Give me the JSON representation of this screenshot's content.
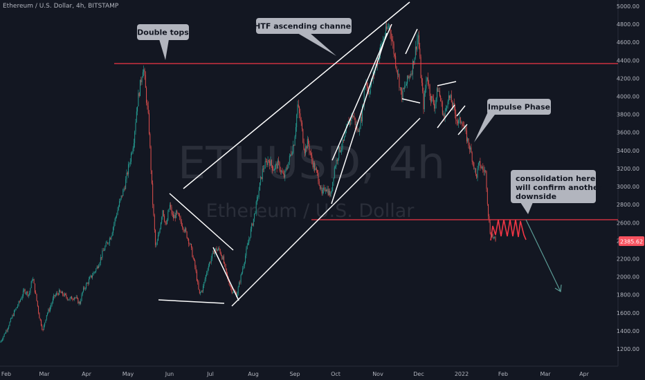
{
  "header": {
    "symbol_title": "Ethereum / U.S. Dollar, 4h, BITSTAMP"
  },
  "watermark": {
    "ticker": "ETHUSD, 4h",
    "name": "Ethereum / U.S. Dollar"
  },
  "colors": {
    "background": "#131722",
    "bull": "#26a69a",
    "bear": "#ef5350",
    "level_line": "#f23645",
    "drawing": "#ffffff",
    "annotation_bg": "#b2b5be",
    "forecast_arrow": "#5b9c96",
    "price_tag": "#f7525f"
  },
  "chart_data": {
    "type": "candlestick",
    "symbol": "ETHUSD",
    "timeframe": "4h",
    "exchange": "BITSTAMP",
    "x_labels": [
      "Feb",
      "Mar",
      "Apr",
      "May",
      "Jun",
      "Jul",
      "Aug",
      "Sep",
      "Oct",
      "Nov",
      "Dec",
      "2022",
      "Feb",
      "Mar",
      "Apr"
    ],
    "y_ticks": [
      1200,
      1400,
      1600,
      1800,
      2000,
      2200,
      2400,
      2600,
      2800,
      3000,
      3200,
      3400,
      3600,
      3800,
      4000,
      4200,
      4400,
      4600,
      4800,
      5000
    ],
    "ylim": [
      1120,
      5060
    ],
    "last_price": "2385.62",
    "price_path": [
      [
        0,
        1270
      ],
      [
        10,
        1420
      ],
      [
        20,
        1600
      ],
      [
        28,
        1720
      ],
      [
        35,
        1850
      ],
      [
        42,
        1800
      ],
      [
        47,
        2000
      ],
      [
        52,
        1780
      ],
      [
        57,
        1550
      ],
      [
        62,
        1400
      ],
      [
        67,
        1580
      ],
      [
        72,
        1650
      ],
      [
        78,
        1780
      ],
      [
        85,
        1830
      ],
      [
        92,
        1800
      ],
      [
        100,
        1750
      ],
      [
        108,
        1780
      ],
      [
        115,
        1700
      ],
      [
        120,
        1850
      ],
      [
        130,
        1980
      ],
      [
        140,
        2100
      ],
      [
        150,
        2300
      ],
      [
        160,
        2450
      ],
      [
        165,
        2600
      ],
      [
        172,
        2800
      ],
      [
        180,
        3000
      ],
      [
        188,
        3300
      ],
      [
        193,
        3500
      ],
      [
        198,
        3900
      ],
      [
        203,
        4150
      ],
      [
        207,
        4350
      ],
      [
        210,
        4100
      ],
      [
        215,
        3700
      ],
      [
        220,
        2900
      ],
      [
        225,
        2300
      ],
      [
        230,
        2500
      ],
      [
        235,
        2750
      ],
      [
        240,
        2550
      ],
      [
        245,
        2800
      ],
      [
        250,
        2650
      ],
      [
        255,
        2700
      ],
      [
        262,
        2600
      ],
      [
        268,
        2500
      ],
      [
        275,
        2350
      ],
      [
        282,
        2100
      ],
      [
        288,
        1800
      ],
      [
        293,
        1870
      ],
      [
        300,
        2100
      ],
      [
        305,
        2200
      ],
      [
        310,
        2300
      ],
      [
        317,
        2300
      ],
      [
        322,
        2200
      ],
      [
        328,
        2000
      ],
      [
        335,
        1850
      ],
      [
        342,
        1800
      ],
      [
        348,
        2000
      ],
      [
        355,
        2250
      ],
      [
        362,
        2500
      ],
      [
        368,
        2700
      ],
      [
        375,
        3000
      ],
      [
        380,
        3200
      ],
      [
        388,
        3300
      ],
      [
        395,
        3200
      ],
      [
        402,
        3250
      ],
      [
        410,
        3100
      ],
      [
        418,
        3300
      ],
      [
        425,
        3500
      ],
      [
        430,
        3900
      ],
      [
        435,
        3700
      ],
      [
        440,
        3400
      ],
      [
        445,
        3500
      ],
      [
        450,
        3300
      ],
      [
        455,
        3200
      ],
      [
        460,
        3100
      ],
      [
        465,
        2900
      ],
      [
        470,
        3000
      ],
      [
        478,
        2900
      ],
      [
        483,
        3200
      ],
      [
        490,
        3400
      ],
      [
        497,
        3500
      ],
      [
        503,
        3700
      ],
      [
        510,
        3800
      ],
      [
        517,
        3600
      ],
      [
        523,
        3800
      ],
      [
        528,
        4200
      ],
      [
        533,
        4050
      ],
      [
        538,
        4200
      ],
      [
        545,
        4400
      ],
      [
        552,
        4600
      ],
      [
        557,
        4700
      ],
      [
        562,
        4800
      ],
      [
        566,
        4650
      ],
      [
        570,
        4450
      ],
      [
        575,
        4250
      ],
      [
        580,
        4000
      ],
      [
        585,
        4100
      ],
      [
        590,
        4200
      ],
      [
        595,
        4300
      ],
      [
        600,
        4500
      ],
      [
        604,
        4700
      ],
      [
        608,
        4250
      ],
      [
        612,
        3900
      ],
      [
        617,
        4250
      ],
      [
        622,
        4000
      ],
      [
        628,
        3900
      ],
      [
        633,
        4100
      ],
      [
        638,
        3900
      ],
      [
        642,
        3750
      ],
      [
        647,
        4000
      ],
      [
        652,
        3950
      ],
      [
        658,
        3800
      ],
      [
        662,
        3700
      ],
      [
        667,
        3750
      ],
      [
        672,
        3600
      ],
      [
        678,
        3450
      ],
      [
        683,
        3300
      ],
      [
        688,
        3100
      ],
      [
        692,
        3250
      ],
      [
        697,
        3200
      ],
      [
        702,
        3150
      ],
      [
        705,
        2750
      ],
      [
        708,
        2500
      ],
      [
        712,
        2450
      ],
      [
        716,
        2385
      ]
    ],
    "horizontal_levels": [
      {
        "price": 4360,
        "role": "double tops resistance"
      },
      {
        "price": 2630,
        "role": "support"
      }
    ],
    "annotations": [
      {
        "id": "double-tops",
        "text": "Double tops"
      },
      {
        "id": "htf-channel",
        "text": "HTF ascending channel"
      },
      {
        "id": "impulse",
        "text": "Impulse Phase"
      },
      {
        "id": "consolidation",
        "lines": [
          "consolidation here",
          "will confirm another",
          "downside"
        ]
      }
    ],
    "grid": false
  }
}
